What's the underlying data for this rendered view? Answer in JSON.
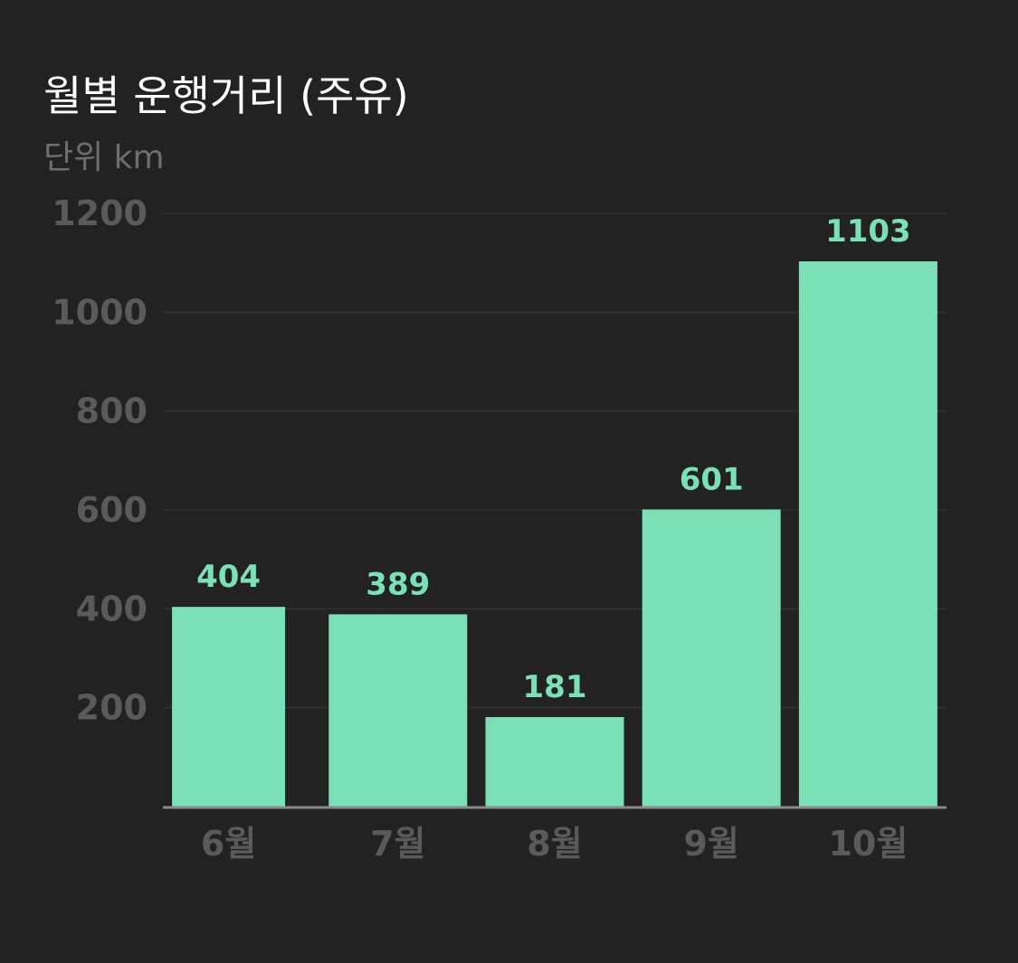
{
  "header": {
    "title": "월별 운행거리 (주유)",
    "unit_label": "단위 km"
  },
  "colors": {
    "background": "#222222",
    "bar": "#7ce0b6",
    "data_label": "#7ce0b6",
    "axis_text": "#5a5a5a",
    "gridline": "#333333",
    "baseline": "#8a8a8a"
  },
  "chart_data": {
    "type": "bar",
    "title": "월별 운행거리 (주유)",
    "subtitle": "단위 km",
    "categories": [
      "6월",
      "7월",
      "8월",
      "9월",
      "10월"
    ],
    "values": [
      404,
      389,
      181,
      601,
      1103
    ],
    "value_labels": [
      "404",
      "389",
      "181",
      "601",
      "1103"
    ],
    "ylim": [
      0,
      1200
    ],
    "yticks": [
      200,
      400,
      600,
      800,
      1000,
      1200
    ],
    "ytick_labels": [
      "200",
      "400",
      "600",
      "800",
      "1000",
      "1200"
    ],
    "grid": true,
    "legend": "none"
  }
}
